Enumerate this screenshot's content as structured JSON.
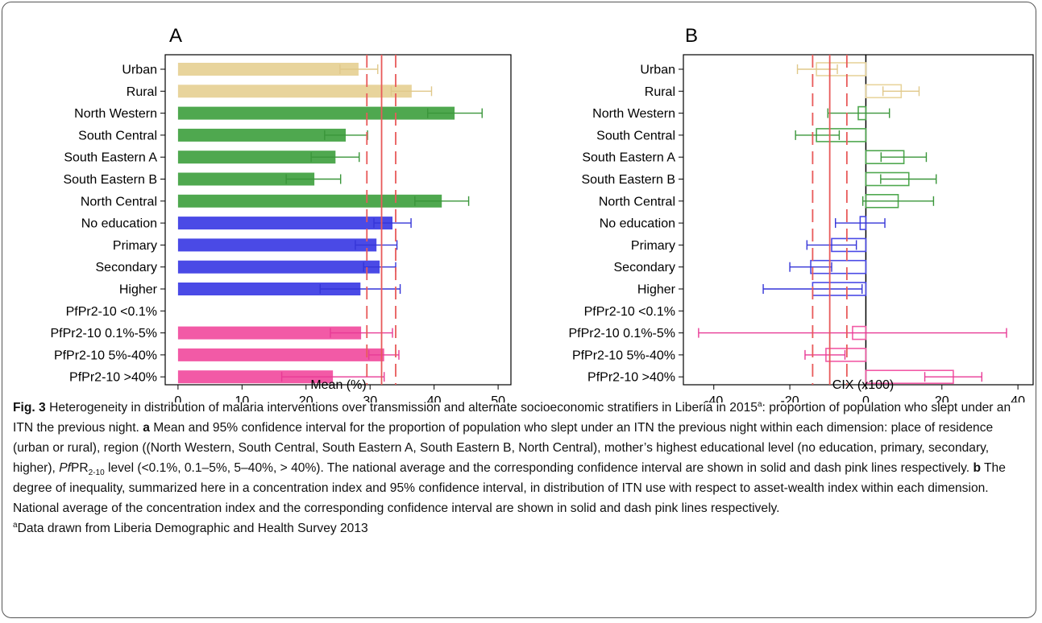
{
  "panels": {
    "a": {
      "letter": "A",
      "xlabel": "Mean (%)"
    },
    "b": {
      "letter": "B",
      "xlabel": "CIX (x100)"
    }
  },
  "colors": {
    "residence": "#e8d49c",
    "residence_err": "#e0c88a",
    "region": "#4fa84f",
    "region_err": "#3a963a",
    "education": "#4a4ae6",
    "education_err": "#3535d8",
    "pfpr": "#f25aa6",
    "pfpr_err": "#e83a96",
    "reference": "#e85a5a"
  },
  "chart_data": [
    {
      "type": "bar",
      "panel": "A",
      "xlabel": "Mean (%)",
      "xlim": [
        -2,
        52
      ],
      "xticks": [
        0,
        10,
        20,
        30,
        40,
        50
      ],
      "categories": [
        "Urban",
        "Rural",
        "North Western",
        "South Central",
        "South Eastern A",
        "South Eastern B",
        "North Central",
        "No education",
        "Primary",
        "Secondary",
        "Higher",
        "PfPr2-10 <0.1%",
        "PfPr2-10 0.1%-5%",
        "PfPr2-10 5%-40%",
        "PfPr2-10 >40%"
      ],
      "groups": [
        "residence",
        "residence",
        "region",
        "region",
        "region",
        "region",
        "region",
        "education",
        "education",
        "education",
        "education",
        "pfpr",
        "pfpr",
        "pfpr",
        "pfpr"
      ],
      "values": [
        28.2,
        36.5,
        43.2,
        26.2,
        24.6,
        21.3,
        41.2,
        33.5,
        31.0,
        31.5,
        28.5,
        null,
        28.6,
        32.2,
        24.2
      ],
      "ci_low": [
        25.3,
        33.3,
        39.0,
        22.9,
        20.8,
        16.9,
        37.0,
        30.6,
        27.7,
        29.0,
        22.2,
        null,
        23.8,
        29.8,
        16.2
      ],
      "ci_high": [
        31.2,
        39.6,
        47.5,
        29.6,
        28.3,
        25.4,
        45.4,
        36.4,
        34.2,
        34.0,
        34.7,
        null,
        33.5,
        34.5,
        32.2
      ],
      "reference": {
        "mean": 31.8,
        "ci": [
          29.5,
          34.0
        ]
      }
    },
    {
      "type": "bar",
      "panel": "B",
      "xlabel": "CIX (x100)",
      "xlim": [
        -48,
        44
      ],
      "xticks": [
        -40,
        -20,
        0,
        20,
        40
      ],
      "categories": [
        "Urban",
        "Rural",
        "North Western",
        "South Central",
        "South Eastern A",
        "South Eastern B",
        "North Central",
        "No education",
        "Primary",
        "Secondary",
        "Higher",
        "PfPr2-10 <0.1%",
        "PfPr2-10 0.1%-5%",
        "PfPr2-10 5%-40%",
        "PfPr2-10 >40%"
      ],
      "groups": [
        "residence",
        "residence",
        "region",
        "region",
        "region",
        "region",
        "region",
        "education",
        "education",
        "education",
        "education",
        "pfpr",
        "pfpr",
        "pfpr",
        "pfpr"
      ],
      "values": [
        -13.0,
        9.3,
        -2.0,
        -13.0,
        10.0,
        11.3,
        8.5,
        -1.5,
        -9.0,
        -14.5,
        -14.0,
        null,
        -3.5,
        -10.5,
        23.0
      ],
      "ci_low": [
        -18.0,
        4.5,
        -10.0,
        -18.5,
        4.0,
        3.9,
        -0.8,
        -8.0,
        -15.5,
        -20.0,
        -27.0,
        null,
        -44.0,
        -16.0,
        15.5
      ],
      "ci_high": [
        -7.5,
        14.0,
        6.2,
        -7.0,
        15.9,
        18.5,
        17.8,
        5.0,
        -2.5,
        -9.0,
        -1.0,
        null,
        37.0,
        -5.5,
        30.5
      ],
      "reference": {
        "mean": -9.5,
        "ci": [
          -14.0,
          -5.0
        ]
      }
    }
  ],
  "caption": {
    "fig_label": "Fig. 3",
    "part1": " Heterogeneity in distribution of malaria interventions over transmission and alternate socioeconomic stratifiers in Liberia in 2015",
    "sup_a": "a",
    "part2": ": proportion of population who slept under an ITN the previous night. ",
    "a_label": "a",
    "part3": " Mean and 95% confidence interval for the proportion of population who slept under an ITN the previous night within each dimension: place of residence (urban or rural), region ((North Western, South Central, South Eastern A, South Eastern B, North Central), mother’s highest educational level (no education, primary, secondary, higher), ",
    "pf": "Pf",
    "pr": "PR",
    "sub": "2-10",
    "part4": " level (<0.1%, 0.1–5%, 5–40%, > 40%). The national average and the corresponding confidence interval are shown in solid and dash pink lines respectively. ",
    "b_label": "b",
    "part5": " The degree of inequality, summarized here in a concentration index and 95% confidence interval, in distribution of ITN use with respect to asset-wealth index within each dimension. National average of the concentration index and the corresponding confidence interval are shown in solid and dash pink lines respectively.",
    "foot_sup": "a",
    "footnote": "Data drawn from Liberia Demographic and Health Survey 2013"
  }
}
